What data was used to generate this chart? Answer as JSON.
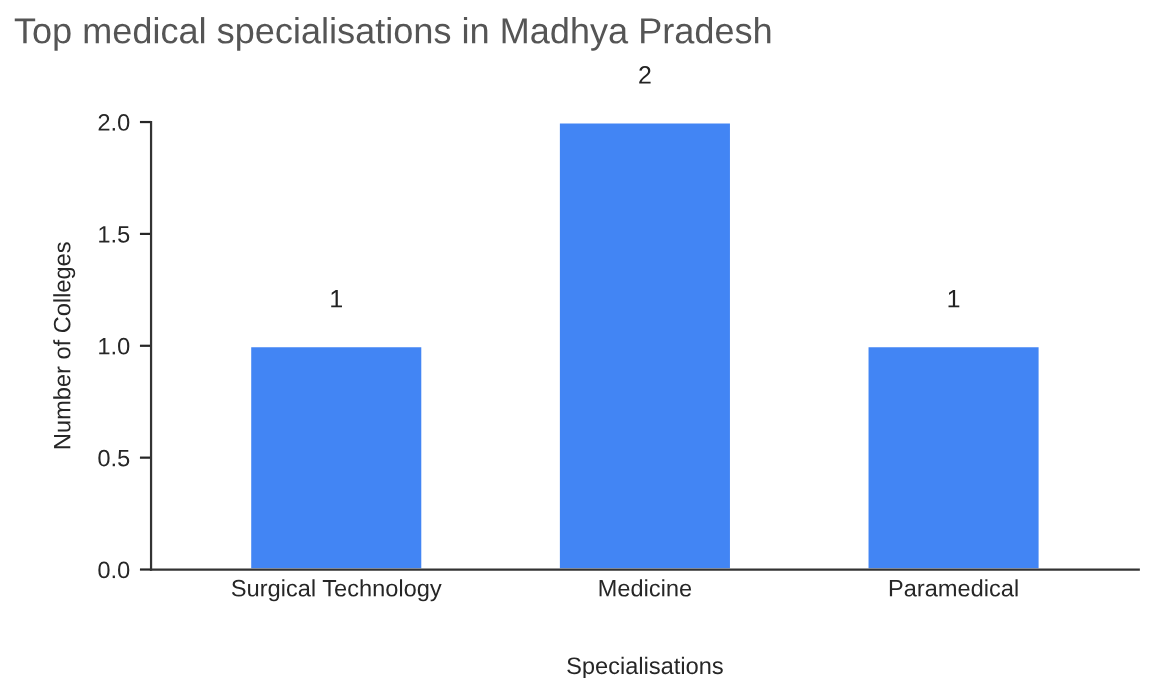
{
  "chart_data": {
    "type": "bar",
    "title": "Top medical specialisations in Madhya Pradesh",
    "xlabel": "Specialisations",
    "ylabel": "Number of Colleges",
    "categories": [
      "Surgical Technology",
      "Medicine",
      "Paramedical"
    ],
    "values": [
      1,
      2,
      1
    ],
    "color": "#4285f4",
    "data_labels": true,
    "ylim": [
      0,
      2
    ],
    "yticks": [
      {
        "value": 0,
        "label": "0.0"
      },
      {
        "value": 0.5,
        "label": "0.5"
      },
      {
        "value": 1,
        "label": "1.0"
      },
      {
        "value": 1.5,
        "label": "1.5"
      },
      {
        "value": 2,
        "label": "2.0"
      }
    ],
    "grid": false
  }
}
